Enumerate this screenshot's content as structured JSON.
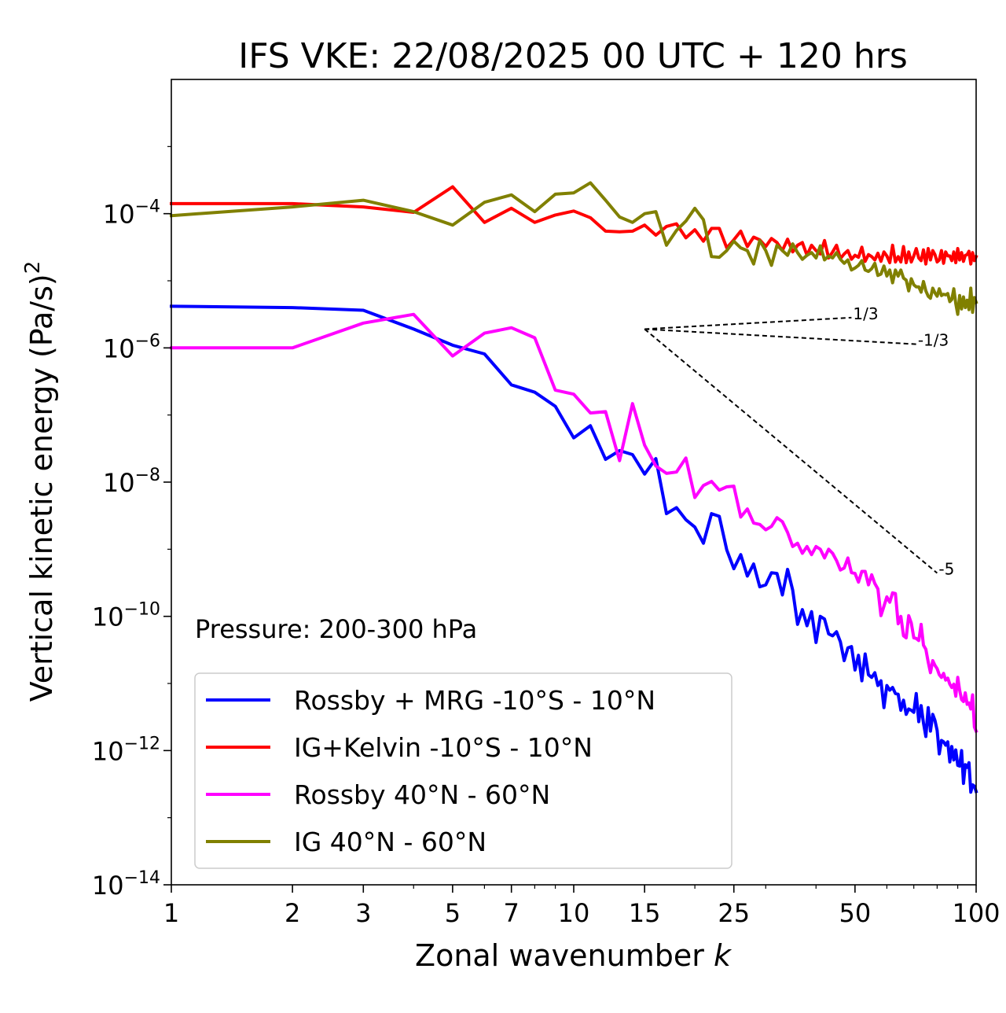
{
  "chart_data": {
    "type": "line",
    "title": "IFS VKE: 22/08/2025 00 UTC + 120 hrs",
    "xlabel": "Zonal wavenumber",
    "xlabel_var": "k",
    "ylabel": "Vertical kinetic energy (Pa/s)",
    "ylabel_sup": "2",
    "xscale": "log",
    "yscale": "log",
    "xlim": [
      1,
      100
    ],
    "ylim": [
      1e-14,
      0.01
    ],
    "xticks": [
      {
        "value": 1,
        "label": "1"
      },
      {
        "value": 2,
        "label": "2"
      },
      {
        "value": 3,
        "label": "3"
      },
      {
        "value": 5,
        "label": "5"
      },
      {
        "value": 7,
        "label": "7"
      },
      {
        "value": 10,
        "label": "10"
      },
      {
        "value": 15,
        "label": "15"
      },
      {
        "value": 25,
        "label": "25"
      },
      {
        "value": 50,
        "label": "50"
      },
      {
        "value": 100,
        "label": "100"
      }
    ],
    "yticks": [
      {
        "exp": -4,
        "base": "10",
        "sup": "−4"
      },
      {
        "exp": -6,
        "base": "10",
        "sup": "−6"
      },
      {
        "exp": -8,
        "base": "10",
        "sup": "−8"
      },
      {
        "exp": -10,
        "base": "10",
        "sup": "−10"
      },
      {
        "exp": -12,
        "base": "10",
        "sup": "−12"
      },
      {
        "exp": -14,
        "base": "10",
        "sup": "−14"
      }
    ],
    "annotation": "Pressure: 200-300 hPa",
    "legend_position": "lower-left",
    "series": [
      {
        "name": "Rossby + MRG -10°S - 10°N",
        "color": "#0000ff",
        "x": [
          1,
          2,
          3,
          4,
          5,
          6,
          7,
          8,
          9,
          10,
          11,
          12,
          13,
          14,
          15,
          16,
          17,
          18,
          19,
          20,
          21,
          22,
          23,
          24,
          25,
          26,
          27,
          28,
          29,
          30,
          31,
          32,
          33,
          34,
          35,
          36,
          37,
          38,
          39,
          40,
          41,
          42,
          43,
          44,
          45,
          46,
          47,
          48,
          49,
          50,
          51,
          52,
          53,
          54,
          55,
          56,
          57,
          58,
          59,
          60,
          61,
          62,
          63,
          64,
          65,
          66,
          67,
          68,
          69,
          70,
          71,
          72,
          73,
          74,
          75,
          76,
          77,
          78,
          79,
          80,
          81,
          82,
          83,
          84,
          85,
          86,
          87,
          88,
          89,
          90,
          91,
          92,
          93,
          94,
          95,
          96,
          97,
          98,
          99,
          100
        ],
        "y": [
          -5.38,
          -5.4,
          -5.44,
          -5.72,
          -5.96,
          -6.09,
          -6.55,
          -6.66,
          -6.87,
          -7.34,
          -7.16,
          -7.66,
          -7.53,
          -7.59,
          -7.88,
          -7.65,
          -8.47,
          -8.38,
          -8.56,
          -8.67,
          -8.91,
          -8.47,
          -8.51,
          -9.01,
          -9.29,
          -9.08,
          -9.4,
          -9.22,
          -9.56,
          -9.53,
          -9.35,
          -9.36,
          -9.68,
          -9.3,
          -9.61,
          -10.12,
          -9.9,
          -10.14,
          -9.93,
          -10.39,
          -10.0,
          -10.04,
          -10.26,
          -10.29,
          -10.23,
          -10.38,
          -10.66,
          -10.47,
          -10.45,
          -10.8,
          -10.58,
          -10.96,
          -10.56,
          -10.87,
          -10.91,
          -10.84,
          -11.03,
          -10.96,
          -11.36,
          -11.03,
          -11.1,
          -11.06,
          -11.15,
          -11.16,
          -11.4,
          -11.25,
          -11.46,
          -11.38,
          -11.4,
          -11.43,
          -11.15,
          -11.57,
          -11.33,
          -11.59,
          -11.79,
          -11.36,
          -11.71,
          -11.46,
          -11.55,
          -11.7,
          -12.05,
          -11.85,
          -11.87,
          -11.92,
          -11.87,
          -12.17,
          -11.94,
          -12.14,
          -11.99,
          -12.22,
          -12.23,
          -12.0,
          -12.49,
          -12.21,
          -12.25,
          -12.18,
          -12.62,
          -12.51,
          -12.53,
          -12.61
        ]
      },
      {
        "name": "IG+Kelvin -10°S - 10°N",
        "color": "#ff0000",
        "x": [
          1,
          2,
          3,
          4,
          5,
          6,
          7,
          8,
          9,
          10,
          11,
          12,
          13,
          14,
          15,
          16,
          17,
          18,
          19,
          20,
          21,
          22,
          23,
          24,
          25,
          26,
          27,
          28,
          29,
          30,
          31,
          32,
          33,
          34,
          35,
          36,
          37,
          38,
          39,
          40,
          41,
          42,
          43,
          44,
          45,
          46,
          47,
          48,
          49,
          50,
          51,
          52,
          53,
          54,
          55,
          56,
          57,
          58,
          59,
          60,
          61,
          62,
          63,
          64,
          65,
          66,
          67,
          68,
          69,
          70,
          71,
          72,
          73,
          74,
          75,
          76,
          77,
          78,
          79,
          80,
          81,
          82,
          83,
          84,
          85,
          86,
          87,
          88,
          89,
          90,
          91,
          92,
          93,
          94,
          95,
          96,
          97,
          98,
          99,
          100
        ],
        "y": [
          -3.85,
          -3.85,
          -3.9,
          -3.98,
          -3.6,
          -4.13,
          -3.92,
          -4.13,
          -4.02,
          -3.96,
          -4.06,
          -4.26,
          -4.27,
          -4.26,
          -4.17,
          -4.32,
          -4.19,
          -4.15,
          -4.36,
          -4.24,
          -4.41,
          -4.22,
          -4.22,
          -4.51,
          -4.39,
          -4.26,
          -4.49,
          -4.35,
          -4.39,
          -4.49,
          -4.37,
          -4.43,
          -4.55,
          -4.38,
          -4.57,
          -4.47,
          -4.43,
          -4.62,
          -4.47,
          -4.55,
          -4.6,
          -4.4,
          -4.66,
          -4.57,
          -4.47,
          -4.67,
          -4.6,
          -4.55,
          -4.68,
          -4.62,
          -4.65,
          -4.5,
          -4.71,
          -4.61,
          -4.64,
          -4.69,
          -4.59,
          -4.71,
          -4.57,
          -4.63,
          -4.73,
          -4.47,
          -4.72,
          -4.64,
          -4.72,
          -4.49,
          -4.73,
          -4.57,
          -4.72,
          -4.63,
          -4.52,
          -4.66,
          -4.7,
          -4.54,
          -4.75,
          -4.52,
          -4.69,
          -4.55,
          -4.61,
          -4.72,
          -4.69,
          -4.55,
          -4.74,
          -4.57,
          -4.63,
          -4.63,
          -4.7,
          -4.57,
          -4.73,
          -4.52,
          -4.69,
          -4.58,
          -4.71,
          -4.62,
          -4.61,
          -4.56,
          -4.75,
          -4.58,
          -4.7,
          -4.64
        ]
      },
      {
        "name": "Rossby 40°N - 60°N",
        "color": "#ff00ff",
        "x": [
          1,
          2,
          3,
          4,
          5,
          6,
          7,
          8,
          9,
          10,
          11,
          12,
          13,
          14,
          15,
          16,
          17,
          18,
          19,
          20,
          21,
          22,
          23,
          24,
          25,
          26,
          27,
          28,
          29,
          30,
          31,
          32,
          33,
          34,
          35,
          36,
          37,
          38,
          39,
          40,
          41,
          42,
          43,
          44,
          45,
          46,
          47,
          48,
          49,
          50,
          51,
          52,
          53,
          54,
          55,
          56,
          57,
          58,
          59,
          60,
          61,
          62,
          63,
          64,
          65,
          66,
          67,
          68,
          69,
          70,
          71,
          72,
          73,
          74,
          75,
          76,
          77,
          78,
          79,
          80,
          81,
          82,
          83,
          84,
          85,
          86,
          87,
          88,
          89,
          90,
          91,
          92,
          93,
          94,
          95,
          96,
          97,
          98,
          99,
          100
        ],
        "y": [
          -6.0,
          -6.0,
          -5.63,
          -5.5,
          -6.12,
          -5.78,
          -5.7,
          -5.85,
          -6.63,
          -6.69,
          -6.97,
          -6.95,
          -7.68,
          -6.83,
          -7.45,
          -7.76,
          -7.87,
          -7.85,
          -7.64,
          -8.23,
          -8.05,
          -7.99,
          -8.12,
          -8.07,
          -8.06,
          -8.52,
          -8.4,
          -8.61,
          -8.63,
          -8.71,
          -8.66,
          -8.53,
          -8.59,
          -8.75,
          -8.96,
          -8.91,
          -9.06,
          -8.96,
          -9.08,
          -8.96,
          -9.0,
          -9.13,
          -9.0,
          -9.06,
          -9.17,
          -9.31,
          -9.28,
          -9.13,
          -9.35,
          -9.36,
          -9.49,
          -9.33,
          -9.33,
          -9.53,
          -9.38,
          -9.51,
          -9.59,
          -9.99,
          -9.85,
          -9.71,
          -9.79,
          -9.65,
          -9.66,
          -10.11,
          -10.0,
          -10.29,
          -10.32,
          -9.99,
          -10.1,
          -10.32,
          -10.33,
          -10.36,
          -10.12,
          -10.43,
          -10.49,
          -10.68,
          -10.84,
          -10.66,
          -10.73,
          -10.78,
          -10.87,
          -10.91,
          -10.85,
          -10.95,
          -10.92,
          -11.01,
          -11.06,
          -11.01,
          -11.19,
          -10.91,
          -11.1,
          -11.24,
          -11.27,
          -11.14,
          -11.31,
          -11.29,
          -11.38,
          -11.17,
          -11.65,
          -11.71
        ]
      },
      {
        "name": "IG 40°N - 60°N",
        "color": "#808000",
        "x": [
          1,
          2,
          3,
          4,
          5,
          6,
          7,
          8,
          9,
          10,
          11,
          12,
          13,
          14,
          15,
          16,
          17,
          18,
          19,
          20,
          21,
          22,
          23,
          24,
          25,
          26,
          27,
          28,
          29,
          30,
          31,
          32,
          33,
          34,
          35,
          36,
          37,
          38,
          39,
          40,
          41,
          42,
          43,
          44,
          45,
          46,
          47,
          48,
          49,
          50,
          51,
          52,
          53,
          54,
          55,
          56,
          57,
          58,
          59,
          60,
          61,
          62,
          63,
          64,
          65,
          66,
          67,
          68,
          69,
          70,
          71,
          72,
          73,
          74,
          75,
          76,
          77,
          78,
          79,
          80,
          81,
          82,
          83,
          84,
          85,
          86,
          87,
          88,
          89,
          90,
          91,
          92,
          93,
          94,
          95,
          96,
          97,
          98,
          99,
          100
        ],
        "y": [
          -4.03,
          -3.9,
          -3.8,
          -3.97,
          -4.17,
          -3.83,
          -3.72,
          -3.97,
          -3.71,
          -3.69,
          -3.54,
          -3.8,
          -4.05,
          -4.13,
          -4.0,
          -3.97,
          -4.47,
          -4.25,
          -4.11,
          -3.92,
          -4.09,
          -4.64,
          -4.65,
          -4.55,
          -4.41,
          -4.51,
          -4.55,
          -4.75,
          -4.4,
          -4.55,
          -4.77,
          -4.47,
          -4.55,
          -4.62,
          -4.45,
          -4.58,
          -4.68,
          -4.62,
          -4.58,
          -4.66,
          -4.48,
          -4.69,
          -4.63,
          -4.66,
          -4.58,
          -4.68,
          -4.74,
          -4.69,
          -4.84,
          -4.81,
          -4.77,
          -4.7,
          -4.84,
          -4.86,
          -4.82,
          -4.74,
          -4.92,
          -4.9,
          -4.78,
          -4.93,
          -4.84,
          -5.03,
          -4.84,
          -4.93,
          -4.84,
          -4.96,
          -4.99,
          -5.15,
          -4.97,
          -5.06,
          -5.09,
          -5.09,
          -5.17,
          -5.01,
          -5.15,
          -5.23,
          -5.26,
          -5.11,
          -5.18,
          -5.23,
          -5.12,
          -5.22,
          -5.2,
          -5.21,
          -5.19,
          -5.31,
          -5.28,
          -5.12,
          -5.34,
          -5.5,
          -5.22,
          -5.42,
          -5.24,
          -5.4,
          -5.29,
          -5.43,
          -5.11,
          -5.47,
          -5.25,
          -5.32
        ]
      }
    ],
    "reference_slopes": [
      {
        "label": "1/3",
        "slope": 0.3333333333,
        "x0": 15,
        "y0": -5.72,
        "x1": 49
      },
      {
        "label": "-1/3",
        "slope": -0.3333333333,
        "x0": 15,
        "y0": -5.72,
        "x1": 71
      },
      {
        "label": "-5",
        "slope": -5,
        "x0": 15,
        "y0": -5.72,
        "x1": 80
      }
    ]
  }
}
